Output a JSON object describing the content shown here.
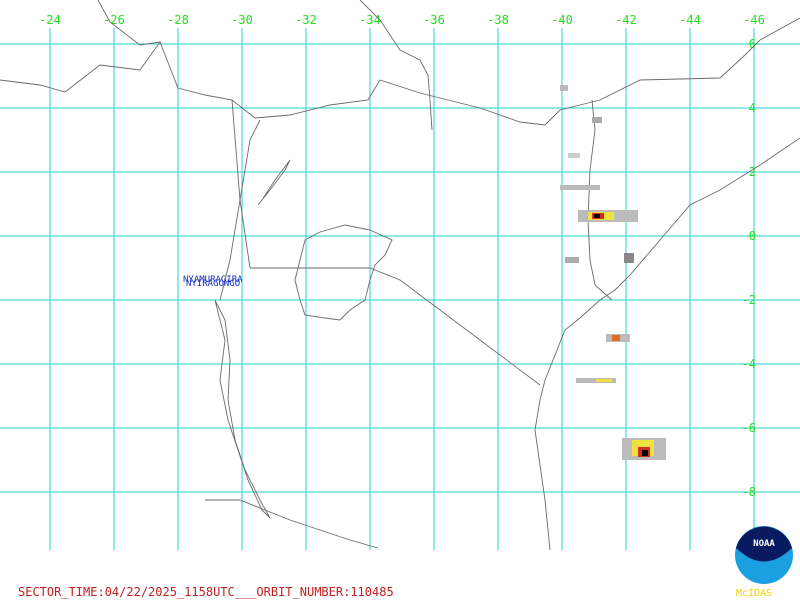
{
  "map": {
    "lon_labels": [
      "-24",
      "-26",
      "-28",
      "-30",
      "-32",
      "-34",
      "-36",
      "-38",
      "-40",
      "-42",
      "-44",
      "-46"
    ],
    "lat_labels": [
      "6",
      "4",
      "2",
      "0",
      "-2",
      "-4",
      "-6",
      "-8"
    ],
    "volcanoes": [
      "NYAMURAGIRA",
      "NYIRAGONGO"
    ]
  },
  "footer": {
    "sector_info": "SECTOR_TIME:04/22/2025_1158UTC___ORBIT_NUMBER:110485"
  },
  "logo": {
    "name": "NOAA",
    "software": "McIDAS"
  }
}
